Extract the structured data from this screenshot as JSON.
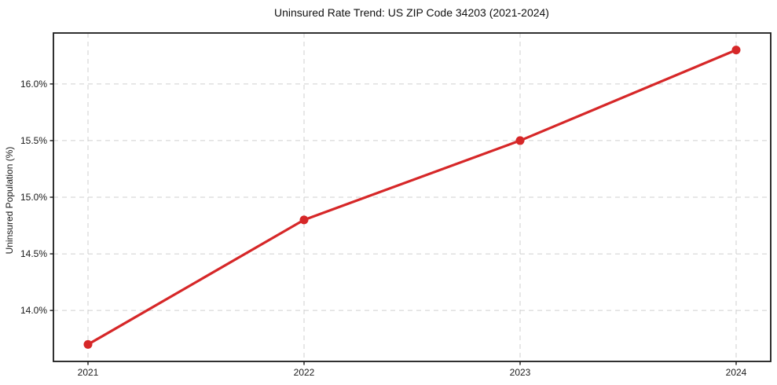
{
  "chart_data": {
    "type": "line",
    "title": "Uninsured Rate Trend: US ZIP Code 34203 (2021-2024)",
    "xlabel": "",
    "ylabel": "Uninsured Population (%)",
    "x": [
      2021,
      2022,
      2023,
      2024
    ],
    "x_tick_labels": [
      "2021",
      "2022",
      "2023",
      "2024"
    ],
    "values": [
      13.7,
      14.8,
      15.5,
      16.3
    ],
    "y_ticks": [
      14.0,
      14.5,
      15.0,
      15.5,
      16.0
    ],
    "y_tick_labels": [
      "14.0%",
      "14.5%",
      "15.0%",
      "15.5%",
      "16.0%"
    ],
    "xlim": [
      2020.84,
      2024.16
    ],
    "ylim": [
      13.55,
      16.45
    ],
    "grid": true,
    "grid_style": "dashed",
    "legend": false,
    "line_color": "#d62728",
    "marker": "circle",
    "grid_color": "#cfcfcf",
    "spine_color": "#1a1a1a",
    "background": "#ffffff"
  }
}
